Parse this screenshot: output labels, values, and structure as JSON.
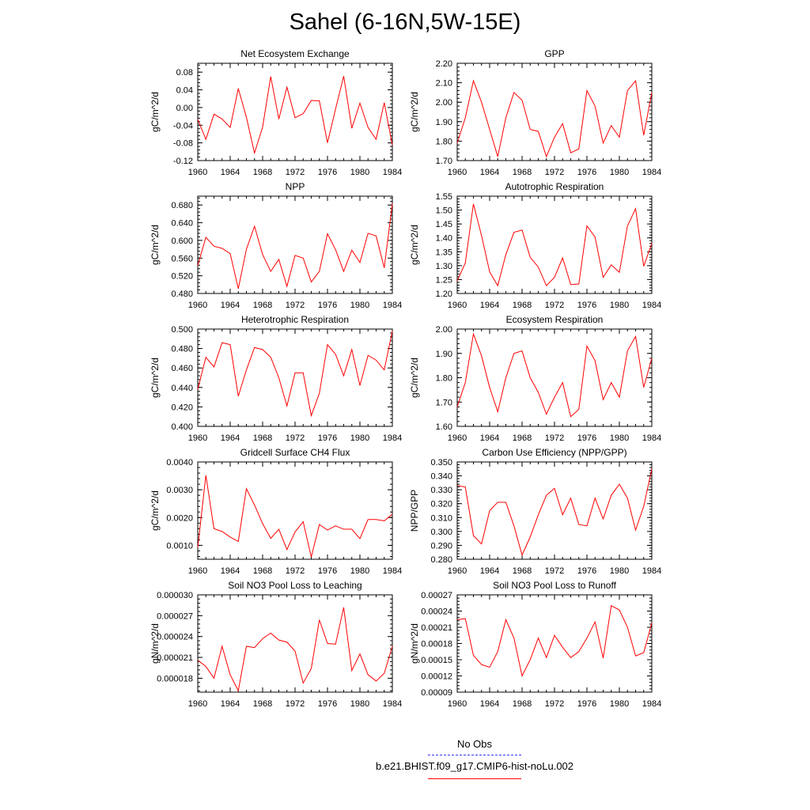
{
  "title": "Sahel (6-16N,5W-15E)",
  "colors": {
    "model_line": "#ff0000",
    "obs_line": "#3333ff",
    "axes": "#000000"
  },
  "legend": {
    "obs_label": "No Obs",
    "model_label": "b.e21.BHIST.f09_g17.CMIP6-hist-noLu.002"
  },
  "chart_data": [
    {
      "type": "line",
      "title": "Net Ecosystem Exchange",
      "ylabel": "gC/m^2/d",
      "xlim": [
        1960,
        1984
      ],
      "ylim": [
        -0.12,
        0.1
      ],
      "xticks": [
        "1960",
        "1964",
        "1968",
        "1972",
        "1976",
        "1980",
        "1984"
      ],
      "yticks": [
        "-0.12",
        "-0.08",
        "-0.04",
        "0.00",
        "0.04",
        "0.08"
      ],
      "ytick_values": [
        -0.12,
        -0.08,
        -0.04,
        0.0,
        0.04,
        0.08
      ],
      "x": [
        1960,
        1961,
        1962,
        1963,
        1964,
        1965,
        1966,
        1967,
        1968,
        1969,
        1970,
        1971,
        1972,
        1973,
        1974,
        1975,
        1976,
        1977,
        1978,
        1979,
        1980,
        1981,
        1982,
        1983,
        1984
      ],
      "values": [
        -0.027,
        -0.072,
        -0.015,
        -0.026,
        -0.045,
        0.043,
        -0.022,
        -0.103,
        -0.044,
        0.07,
        -0.026,
        0.046,
        -0.023,
        -0.014,
        0.016,
        0.015,
        -0.08,
        -0.003,
        0.071,
        -0.047,
        0.01,
        -0.045,
        -0.072,
        0.011,
        -0.085
      ]
    },
    {
      "type": "line",
      "title": "GPP",
      "ylabel": "gC/m^2/d",
      "xlim": [
        1960,
        1984
      ],
      "ylim": [
        1.7,
        2.2
      ],
      "xticks": [
        "1960",
        "1964",
        "1968",
        "1972",
        "1976",
        "1980",
        "1984"
      ],
      "yticks": [
        "1.70",
        "1.80",
        "1.90",
        "2.00",
        "2.10",
        "2.20"
      ],
      "ytick_values": [
        1.7,
        1.8,
        1.9,
        2.0,
        2.1,
        2.2
      ],
      "x": [
        1960,
        1961,
        1962,
        1963,
        1964,
        1965,
        1966,
        1967,
        1968,
        1969,
        1970,
        1971,
        1972,
        1973,
        1974,
        1975,
        1976,
        1977,
        1978,
        1979,
        1980,
        1981,
        1982,
        1983,
        1984
      ],
      "values": [
        1.79,
        1.92,
        2.11,
        2.0,
        1.86,
        1.72,
        1.92,
        2.05,
        2.01,
        1.86,
        1.85,
        1.72,
        1.82,
        1.89,
        1.74,
        1.76,
        2.06,
        1.98,
        1.79,
        1.88,
        1.82,
        2.06,
        2.11,
        1.83,
        2.05
      ]
    },
    {
      "type": "line",
      "title": "NPP",
      "ylabel": "gC/m^2/d",
      "xlim": [
        1960,
        1984
      ],
      "ylim": [
        0.48,
        0.7
      ],
      "xticks": [
        "1960",
        "1964",
        "1968",
        "1972",
        "1976",
        "1980",
        "1984"
      ],
      "yticks": [
        "0.480",
        "0.520",
        "0.560",
        "0.600",
        "0.640",
        "0.680"
      ],
      "ytick_values": [
        0.48,
        0.52,
        0.56,
        0.6,
        0.64,
        0.68
      ],
      "x": [
        1960,
        1961,
        1962,
        1963,
        1964,
        1965,
        1966,
        1967,
        1968,
        1969,
        1970,
        1971,
        1972,
        1973,
        1974,
        1975,
        1976,
        1977,
        1978,
        1979,
        1980,
        1981,
        1982,
        1983,
        1984
      ],
      "values": [
        0.543,
        0.607,
        0.587,
        0.582,
        0.57,
        0.491,
        0.58,
        0.632,
        0.568,
        0.53,
        0.557,
        0.496,
        0.566,
        0.56,
        0.506,
        0.53,
        0.615,
        0.579,
        0.53,
        0.578,
        0.55,
        0.616,
        0.61,
        0.538,
        0.683
      ]
    },
    {
      "type": "line",
      "title": "Autotrophic Respiration",
      "ylabel": "gC/m^2/d",
      "xlim": [
        1960,
        1984
      ],
      "ylim": [
        1.2,
        1.55
      ],
      "xticks": [
        "1960",
        "1964",
        "1968",
        "1972",
        "1976",
        "1980",
        "1984"
      ],
      "yticks": [
        "1.20",
        "1.25",
        "1.30",
        "1.35",
        "1.40",
        "1.45",
        "1.50",
        "1.55"
      ],
      "ytick_values": [
        1.2,
        1.25,
        1.3,
        1.35,
        1.4,
        1.45,
        1.5,
        1.55
      ],
      "x": [
        1960,
        1961,
        1962,
        1963,
        1964,
        1965,
        1966,
        1967,
        1968,
        1969,
        1970,
        1971,
        1972,
        1973,
        1974,
        1975,
        1976,
        1977,
        1978,
        1979,
        1980,
        1981,
        1982,
        1983,
        1984
      ],
      "values": [
        1.245,
        1.31,
        1.522,
        1.408,
        1.278,
        1.228,
        1.34,
        1.42,
        1.428,
        1.33,
        1.295,
        1.228,
        1.258,
        1.328,
        1.232,
        1.234,
        1.443,
        1.403,
        1.258,
        1.303,
        1.276,
        1.443,
        1.505,
        1.298,
        1.38
      ]
    },
    {
      "type": "line",
      "title": "Heterotrophic Respiration",
      "ylabel": "gC/m^2/d",
      "xlim": [
        1960,
        1984
      ],
      "ylim": [
        0.4,
        0.5
      ],
      "xticks": [
        "1960",
        "1964",
        "1968",
        "1972",
        "1976",
        "1980",
        "1984"
      ],
      "yticks": [
        "0.400",
        "0.420",
        "0.440",
        "0.460",
        "0.480",
        "0.500"
      ],
      "ytick_values": [
        0.4,
        0.42,
        0.44,
        0.46,
        0.48,
        0.5
      ],
      "x": [
        1960,
        1961,
        1962,
        1963,
        1964,
        1965,
        1966,
        1967,
        1968,
        1969,
        1970,
        1971,
        1972,
        1973,
        1974,
        1975,
        1976,
        1977,
        1978,
        1979,
        1980,
        1981,
        1982,
        1983,
        1984
      ],
      "values": [
        0.438,
        0.471,
        0.461,
        0.486,
        0.484,
        0.431,
        0.458,
        0.481,
        0.479,
        0.471,
        0.45,
        0.421,
        0.455,
        0.455,
        0.411,
        0.434,
        0.484,
        0.474,
        0.452,
        0.479,
        0.442,
        0.473,
        0.468,
        0.458,
        0.498
      ]
    },
    {
      "type": "line",
      "title": "Ecosystem Respiration",
      "ylabel": "gC/m^2/d",
      "xlim": [
        1960,
        1984
      ],
      "ylim": [
        1.6,
        2.0
      ],
      "xticks": [
        "1960",
        "1964",
        "1968",
        "1972",
        "1976",
        "1980",
        "1984"
      ],
      "yticks": [
        "1.60",
        "1.70",
        "1.80",
        "1.90",
        "2.00"
      ],
      "ytick_values": [
        1.6,
        1.7,
        1.8,
        1.9,
        2.0
      ],
      "x": [
        1960,
        1961,
        1962,
        1963,
        1964,
        1965,
        1966,
        1967,
        1968,
        1969,
        1970,
        1971,
        1972,
        1973,
        1974,
        1975,
        1976,
        1977,
        1978,
        1979,
        1980,
        1981,
        1982,
        1983,
        1984
      ],
      "values": [
        1.68,
        1.78,
        1.98,
        1.89,
        1.76,
        1.66,
        1.8,
        1.9,
        1.91,
        1.8,
        1.74,
        1.65,
        1.72,
        1.78,
        1.64,
        1.67,
        1.93,
        1.87,
        1.71,
        1.78,
        1.72,
        1.91,
        1.97,
        1.76,
        1.88
      ]
    },
    {
      "type": "line",
      "title": "Gridcell Surface CH4 Flux",
      "ylabel": "gC/m^2/d",
      "xlim": [
        1960,
        1984
      ],
      "ylim": [
        0.0005,
        0.004
      ],
      "xticks": [
        "1960",
        "1964",
        "1968",
        "1972",
        "1976",
        "1980",
        "1984"
      ],
      "yticks": [
        "0.0010",
        "0.0020",
        "0.0030",
        "0.0040"
      ],
      "ytick_values": [
        0.001,
        0.002,
        0.003,
        0.004
      ],
      "x": [
        1960,
        1961,
        1962,
        1963,
        1964,
        1965,
        1966,
        1967,
        1968,
        1969,
        1970,
        1971,
        1972,
        1973,
        1974,
        1975,
        1976,
        1977,
        1978,
        1979,
        1980,
        1981,
        1982,
        1983,
        1984
      ],
      "values": [
        0.00092,
        0.00352,
        0.0016,
        0.0015,
        0.0013,
        0.00114,
        0.00304,
        0.00245,
        0.00178,
        0.00125,
        0.00158,
        0.00085,
        0.00148,
        0.00185,
        0.00058,
        0.00175,
        0.00155,
        0.0017,
        0.00158,
        0.00158,
        0.00124,
        0.00193,
        0.00193,
        0.00188,
        0.00212
      ]
    },
    {
      "type": "line",
      "title": "Carbon Use Efficiency (NPP/GPP)",
      "ylabel": "NPP/GPP",
      "xlim": [
        1960,
        1984
      ],
      "ylim": [
        0.28,
        0.35
      ],
      "xticks": [
        "1960",
        "1964",
        "1968",
        "1972",
        "1976",
        "1980",
        "1984"
      ],
      "yticks": [
        "0.280",
        "0.290",
        "0.300",
        "0.310",
        "0.320",
        "0.330",
        "0.340",
        "0.350"
      ],
      "ytick_values": [
        0.28,
        0.29,
        0.3,
        0.31,
        0.32,
        0.33,
        0.34,
        0.35
      ],
      "x": [
        1960,
        1961,
        1962,
        1963,
        1964,
        1965,
        1966,
        1967,
        1968,
        1969,
        1970,
        1971,
        1972,
        1973,
        1974,
        1975,
        1976,
        1977,
        1978,
        1979,
        1980,
        1981,
        1982,
        1983,
        1984
      ],
      "values": [
        0.333,
        0.332,
        0.297,
        0.291,
        0.315,
        0.321,
        0.321,
        0.304,
        0.283,
        0.296,
        0.312,
        0.326,
        0.331,
        0.312,
        0.324,
        0.305,
        0.304,
        0.324,
        0.309,
        0.326,
        0.334,
        0.324,
        0.301,
        0.318,
        0.345
      ]
    },
    {
      "type": "line",
      "title": "Soil NO3 Pool Loss to Leaching",
      "ylabel": "gN/m^2/d",
      "xlim": [
        1960,
        1984
      ],
      "ylim": [
        1.6e-05,
        3e-05
      ],
      "xticks": [
        "1960",
        "1964",
        "1968",
        "1972",
        "1976",
        "1980",
        "1984"
      ],
      "yticks": [
        "0.000018",
        "0.000021",
        "0.000024",
        "0.000027",
        "0.000030"
      ],
      "ytick_values": [
        1.8e-05,
        2.1e-05,
        2.4e-05,
        2.7e-05,
        3e-05
      ],
      "x": [
        1960,
        1961,
        1962,
        1963,
        1964,
        1965,
        1966,
        1967,
        1968,
        1969,
        1970,
        1971,
        1972,
        1973,
        1974,
        1975,
        1976,
        1977,
        1978,
        1979,
        1980,
        1981,
        1982,
        1983,
        1984
      ],
      "values": [
        2.06e-05,
        1.97e-05,
        1.8e-05,
        2.26e-05,
        1.85e-05,
        1.62e-05,
        2.26e-05,
        2.24e-05,
        2.37e-05,
        2.45e-05,
        2.35e-05,
        2.32e-05,
        2.19e-05,
        1.73e-05,
        1.94e-05,
        2.64e-05,
        2.3e-05,
        2.29e-05,
        2.82e-05,
        1.91e-05,
        2.15e-05,
        1.85e-05,
        1.76e-05,
        1.87e-05,
        2.26e-05
      ]
    },
    {
      "type": "line",
      "title": "Soil NO3 Pool Loss to Runoff",
      "ylabel": "gN/m^2/d",
      "xlim": [
        1960,
        1984
      ],
      "ylim": [
        9e-05,
        0.00027
      ],
      "xticks": [
        "1960",
        "1964",
        "1968",
        "1972",
        "1976",
        "1980",
        "1984"
      ],
      "yticks": [
        "0.00009",
        "0.00012",
        "0.00015",
        "0.00018",
        "0.00021",
        "0.00024",
        "0.00027"
      ],
      "ytick_values": [
        9e-05,
        0.00012,
        0.00015,
        0.00018,
        0.00021,
        0.00024,
        0.00027
      ],
      "x": [
        1960,
        1961,
        1962,
        1963,
        1964,
        1965,
        1966,
        1967,
        1968,
        1969,
        1970,
        1971,
        1972,
        1973,
        1974,
        1975,
        1976,
        1977,
        1978,
        1979,
        1980,
        1981,
        1982,
        1983,
        1984
      ],
      "values": [
        0.000224,
        0.000226,
        0.000158,
        0.000141,
        0.000136,
        0.000165,
        0.000224,
        0.00019,
        0.00012,
        0.00015,
        0.00019,
        0.000154,
        0.000195,
        0.000173,
        0.000154,
        0.000165,
        0.00019,
        0.00022,
        0.000153,
        0.00025,
        0.000242,
        0.00021,
        0.000157,
        0.000163,
        0.000218
      ]
    }
  ]
}
